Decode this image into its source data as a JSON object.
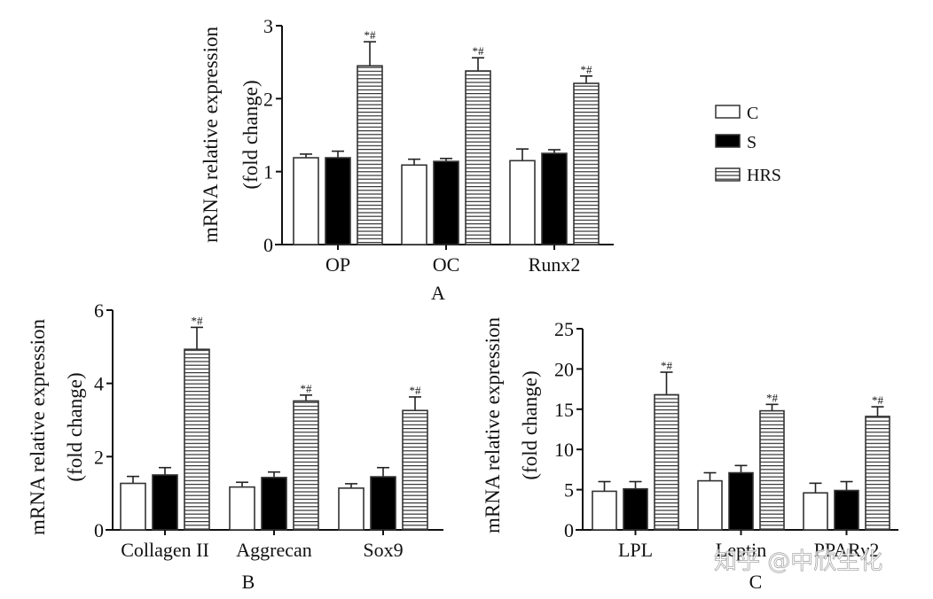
{
  "legend": {
    "entries": [
      {
        "label": "C",
        "style": "white"
      },
      {
        "label": "S",
        "style": "black"
      },
      {
        "label": "HRS",
        "style": "hatched"
      }
    ]
  },
  "watermark": "知乎 @中欣生化",
  "colors": {
    "axis": "#111111",
    "bar_fill_S": "#000000",
    "bar_fill_C": "#ffffff",
    "hatch": "#333333"
  },
  "chart_data": [
    {
      "type": "bar",
      "panel_label": "A",
      "ylabel": "mRNA relative expression",
      "ylabel2": "(fold change)",
      "categories": [
        "OP",
        "OC",
        "Runx2"
      ],
      "ylim": [
        0,
        3
      ],
      "yticks": [
        0,
        1,
        2,
        3
      ],
      "series": [
        {
          "name": "C",
          "values": [
            1.19,
            1.09,
            1.15
          ],
          "errors": [
            0.05,
            0.08,
            0.16
          ]
        },
        {
          "name": "S",
          "values": [
            1.19,
            1.14,
            1.25
          ],
          "errors": [
            0.09,
            0.04,
            0.05
          ]
        },
        {
          "name": "HRS",
          "values": [
            2.45,
            2.38,
            2.21
          ],
          "errors": [
            0.33,
            0.18,
            0.1
          ]
        }
      ],
      "annotations": [
        "*#",
        "*#",
        "*#"
      ]
    },
    {
      "type": "bar",
      "panel_label": "B",
      "ylabel": "mRNA relative expression",
      "ylabel2": "(fold change)",
      "categories": [
        "Collagen II",
        "Aggrecan",
        "Sox9"
      ],
      "ylim": [
        0,
        6
      ],
      "yticks": [
        0,
        2,
        4,
        6
      ],
      "series": [
        {
          "name": "C",
          "values": [
            1.27,
            1.17,
            1.14
          ],
          "errors": [
            0.19,
            0.13,
            0.12
          ]
        },
        {
          "name": "S",
          "values": [
            1.5,
            1.43,
            1.45
          ],
          "errors": [
            0.2,
            0.15,
            0.25
          ]
        },
        {
          "name": "HRS",
          "values": [
            4.93,
            3.52,
            3.26
          ],
          "errors": [
            0.6,
            0.16,
            0.37
          ]
        }
      ],
      "annotations": [
        "*#",
        "*#",
        "*#"
      ]
    },
    {
      "type": "bar",
      "panel_label": "C",
      "ylabel": "mRNA relative expression",
      "ylabel2": "(fold change)",
      "categories": [
        "LPL",
        "Leptin",
        "PPARγ2"
      ],
      "ylim": [
        0,
        25
      ],
      "yticks": [
        0,
        5,
        10,
        15,
        20,
        25
      ],
      "series": [
        {
          "name": "C",
          "values": [
            4.8,
            6.1,
            4.6
          ],
          "errors": [
            1.2,
            1.0,
            1.2
          ]
        },
        {
          "name": "S",
          "values": [
            5.1,
            7.1,
            4.9
          ],
          "errors": [
            0.9,
            0.9,
            1.1
          ]
        },
        {
          "name": "HRS",
          "values": [
            16.8,
            14.8,
            14.1
          ],
          "errors": [
            2.8,
            0.8,
            1.2
          ]
        }
      ],
      "annotations": [
        "*#",
        "*#",
        "*#"
      ]
    }
  ]
}
